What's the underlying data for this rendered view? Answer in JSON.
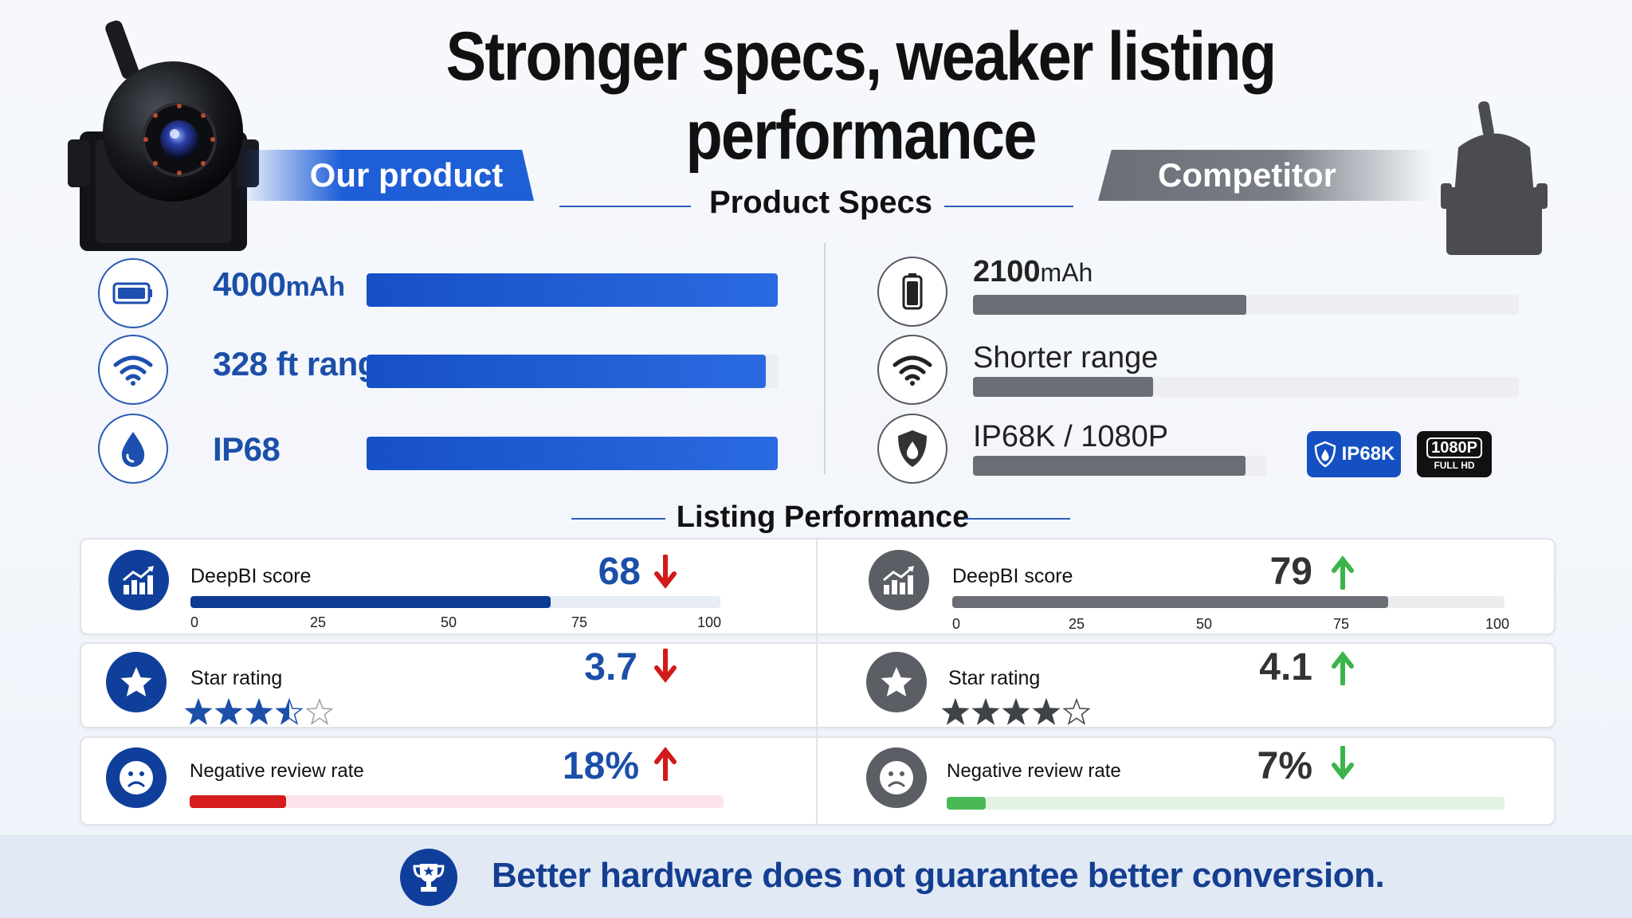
{
  "title": "Stronger specs, weaker listing performance",
  "ribbons": {
    "ours": "Our product",
    "competitor": "Competitor"
  },
  "sections": {
    "specs": "Product Specs",
    "performance": "Listing Performance"
  },
  "our_specs": [
    {
      "icon": "battery-icon",
      "value": "4000",
      "unit": "mAh",
      "fill": 1.0
    },
    {
      "icon": "wifi-icon",
      "value": "328 ft range",
      "fill": 0.97
    },
    {
      "icon": "water-drop-icon",
      "value": "IP68",
      "fill": 1.0
    }
  ],
  "competitor_specs": [
    {
      "icon": "battery-icon",
      "value": "2100",
      "unit": "mAh",
      "fill": 0.5
    },
    {
      "icon": "wifi-icon",
      "value": "Shorter range",
      "fill": 0.33
    },
    {
      "icon": "shield-drop-icon",
      "value": "IP68K / 1080P",
      "fill": 0.93
    }
  ],
  "badges": {
    "ip": "IP68K",
    "res_top": "1080P",
    "res_bottom": "FULL HD"
  },
  "axis_ticks": [
    "0",
    "25",
    "50",
    "75",
    "100"
  ],
  "our_metrics": {
    "deepbi": {
      "label": "DeepBI score",
      "value": "68",
      "score": 68,
      "trend": "down"
    },
    "stars": {
      "label": "Star rating",
      "value": "3.7",
      "rating": 3.7,
      "trend": "down"
    },
    "negative": {
      "label": "Negative review rate",
      "value": "18%",
      "rate": 0.18,
      "trend": "up"
    }
  },
  "competitor_metrics": {
    "deepbi": {
      "label": "DeepBI score",
      "value": "79",
      "score": 79,
      "trend": "up"
    },
    "stars": {
      "label": "Star rating",
      "value": "4.1",
      "rating": 4.1,
      "trend": "up"
    },
    "negative": {
      "label": "Negative review rate",
      "value": "7%",
      "rate": 0.07,
      "trend": "down"
    }
  },
  "colors": {
    "our_blue": "#1b4fa8",
    "competitor_gray": "#5b5e64",
    "down_red": "#d11a1a",
    "up_green": "#3bb54a",
    "negative_red": "#d61c1c",
    "negative_green": "#49b957"
  },
  "footer": {
    "icon": "trophy-icon",
    "text": "Better hardware does not guarantee better conversion."
  }
}
